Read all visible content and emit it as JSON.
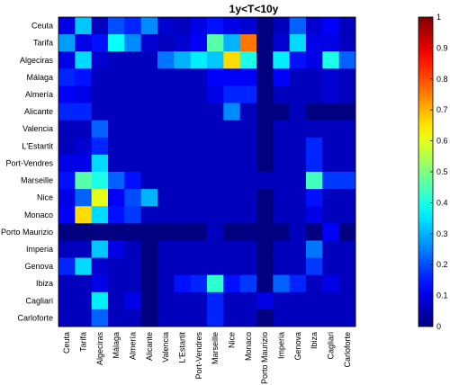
{
  "chart_data": {
    "type": "heatmap",
    "title": "1y<T<10y",
    "xlabel": "",
    "ylabel": "",
    "colorscale": "jet",
    "clim": [
      0,
      1
    ],
    "colorbar_ticks": [
      "0",
      "0.1",
      "0.2",
      "0.3",
      "0.4",
      "0.5",
      "0.6",
      "0.7",
      "0.8",
      "0.9",
      "1"
    ],
    "rows": [
      "Ceuta",
      "Tarifa",
      "Algeciras",
      "Málaga",
      "Almería",
      "Alicante",
      "Valencia",
      "L'Estartit",
      "Port-Vendres",
      "Marseille",
      "Nice",
      "Monaco",
      "Porto Maurizio",
      "Imperia",
      "Genova",
      "Ibiza",
      "Cagliari",
      "Carloforte"
    ],
    "columns": [
      "Ceuta",
      "Tarifa",
      "Algeciras",
      "Málaga",
      "Almería",
      "Alicante",
      "Valencia",
      "L'Estartit",
      "Port-Vendres",
      "Marseille",
      "Nice",
      "Monaco",
      "Porto Maurizio",
      "Imperia",
      "Genova",
      "Ibiza",
      "Cagliari",
      "Carloforte"
    ],
    "values": [
      [
        0.1,
        0.32,
        0.06,
        0.2,
        0.16,
        0.26,
        0.08,
        0.06,
        0.1,
        0.14,
        0.1,
        0.08,
        0.0,
        0.06,
        0.22,
        0.08,
        0.12,
        0.06
      ],
      [
        0.28,
        0.1,
        0.14,
        0.38,
        0.26,
        0.08,
        0.06,
        0.08,
        0.12,
        0.46,
        0.3,
        0.76,
        0.0,
        0.08,
        0.34,
        0.1,
        0.1,
        0.06
      ],
      [
        0.1,
        0.34,
        0.08,
        0.06,
        0.06,
        0.06,
        0.24,
        0.3,
        0.36,
        0.32,
        0.66,
        0.4,
        0.0,
        0.36,
        0.14,
        0.1,
        0.4,
        0.22
      ],
      [
        0.16,
        0.14,
        0.06,
        0.06,
        0.06,
        0.06,
        0.06,
        0.06,
        0.06,
        0.12,
        0.12,
        0.12,
        0.0,
        0.12,
        0.06,
        0.06,
        0.08,
        0.06
      ],
      [
        0.12,
        0.1,
        0.06,
        0.06,
        0.06,
        0.06,
        0.06,
        0.06,
        0.06,
        0.1,
        0.16,
        0.16,
        0.0,
        0.06,
        0.06,
        0.06,
        0.08,
        0.06
      ],
      [
        0.16,
        0.16,
        0.06,
        0.06,
        0.06,
        0.06,
        0.06,
        0.06,
        0.06,
        0.06,
        0.26,
        0.06,
        0.0,
        0.0,
        0.06,
        0.0,
        0.0,
        0.0
      ],
      [
        0.06,
        0.06,
        0.22,
        0.06,
        0.06,
        0.06,
        0.06,
        0.06,
        0.06,
        0.06,
        0.06,
        0.06,
        0.0,
        0.06,
        0.06,
        0.06,
        0.06,
        0.06
      ],
      [
        0.06,
        0.08,
        0.16,
        0.06,
        0.06,
        0.06,
        0.06,
        0.06,
        0.06,
        0.06,
        0.06,
        0.06,
        0.0,
        0.06,
        0.06,
        0.16,
        0.06,
        0.06
      ],
      [
        0.1,
        0.1,
        0.34,
        0.06,
        0.06,
        0.06,
        0.06,
        0.06,
        0.06,
        0.06,
        0.06,
        0.06,
        0.0,
        0.06,
        0.06,
        0.16,
        0.06,
        0.06
      ],
      [
        0.14,
        0.46,
        0.4,
        0.22,
        0.14,
        0.06,
        0.06,
        0.06,
        0.06,
        0.06,
        0.06,
        0.06,
        0.06,
        0.06,
        0.06,
        0.44,
        0.18,
        0.18
      ],
      [
        0.1,
        0.22,
        0.6,
        0.12,
        0.2,
        0.3,
        0.06,
        0.06,
        0.06,
        0.06,
        0.06,
        0.06,
        0.0,
        0.06,
        0.06,
        0.14,
        0.06,
        0.06
      ],
      [
        0.12,
        0.66,
        0.34,
        0.14,
        0.18,
        0.06,
        0.06,
        0.06,
        0.06,
        0.06,
        0.06,
        0.06,
        0.0,
        0.06,
        0.06,
        0.1,
        0.06,
        0.06
      ],
      [
        0.0,
        0.0,
        0.0,
        0.0,
        0.0,
        0.0,
        0.0,
        0.0,
        0.0,
        0.06,
        0.0,
        0.0,
        0.0,
        0.0,
        0.06,
        0.0,
        0.12,
        0.0
      ],
      [
        0.06,
        0.06,
        0.32,
        0.1,
        0.06,
        0.0,
        0.06,
        0.06,
        0.06,
        0.06,
        0.06,
        0.06,
        0.0,
        0.06,
        0.06,
        0.24,
        0.06,
        0.06
      ],
      [
        0.16,
        0.34,
        0.08,
        0.06,
        0.06,
        0.0,
        0.06,
        0.06,
        0.06,
        0.06,
        0.06,
        0.06,
        0.0,
        0.06,
        0.06,
        0.18,
        0.06,
        0.06
      ],
      [
        0.06,
        0.06,
        0.1,
        0.06,
        0.06,
        0.0,
        0.06,
        0.14,
        0.16,
        0.42,
        0.14,
        0.18,
        0.0,
        0.22,
        0.16,
        0.06,
        0.1,
        0.06
      ],
      [
        0.06,
        0.06,
        0.36,
        0.06,
        0.1,
        0.0,
        0.06,
        0.06,
        0.06,
        0.16,
        0.06,
        0.06,
        0.1,
        0.06,
        0.06,
        0.06,
        0.06,
        0.06
      ],
      [
        0.06,
        0.06,
        0.22,
        0.06,
        0.06,
        0.0,
        0.06,
        0.06,
        0.06,
        0.16,
        0.06,
        0.06,
        0.0,
        0.06,
        0.06,
        0.06,
        0.06,
        0.06
      ]
    ]
  }
}
